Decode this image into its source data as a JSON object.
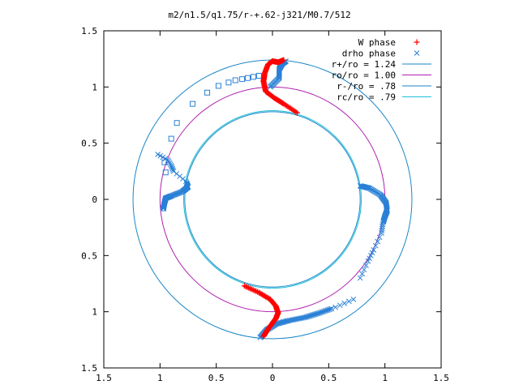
{
  "chart_data": {
    "type": "scatter",
    "title": "m2/n1.5/q1.75/r-+.62-j321/M0.7/512",
    "xlabel": "",
    "ylabel": "",
    "xlim": [
      -1.5,
      1.5
    ],
    "ylim": [
      -1.5,
      1.5
    ],
    "x_ticks": [
      "1.5",
      "1",
      "0.5",
      "0",
      "0.5",
      "1",
      "1.5"
    ],
    "y_ticks": [
      "1.5",
      "1",
      "0.5",
      "0",
      "0.5",
      "1",
      "1.5"
    ],
    "x_tick_values": [
      -1.5,
      -1,
      -0.5,
      0,
      0.5,
      1,
      1.5
    ],
    "y_tick_values": [
      1.5,
      1,
      0.5,
      0,
      -0.5,
      -1,
      -1.5
    ],
    "grid": false,
    "legend_position": "top-right",
    "series": [
      {
        "name": "W phase",
        "marker": "plus",
        "color": "#ff0000"
      },
      {
        "name": "drho phase",
        "marker": "x",
        "color": "#2a80d6"
      },
      {
        "name": "r+/ro = 1.24",
        "kind": "circle",
        "radius": 1.24,
        "color": "#1a86c8"
      },
      {
        "name": "ro/ro = 1.00",
        "kind": "circle",
        "radius": 1.0,
        "color": "#b020b0"
      },
      {
        "name": "r-/ro = .78",
        "kind": "circle",
        "radius": 0.78,
        "color": "#1a86c8"
      },
      {
        "name": "rc/ro = .79",
        "kind": "circle",
        "radius": 0.79,
        "color": "#20c0d8"
      }
    ],
    "w_phase_arms": [
      [
        [
          0.22,
          0.77
        ],
        [
          0.1,
          0.85
        ],
        [
          0.02,
          0.9
        ],
        [
          -0.06,
          0.96
        ],
        [
          -0.08,
          1.05
        ],
        [
          -0.07,
          1.12
        ],
        [
          -0.04,
          1.2
        ],
        [
          0.0,
          1.23
        ],
        [
          0.05,
          1.22
        ],
        [
          0.1,
          1.24
        ]
      ],
      [
        [
          -0.25,
          -0.77
        ],
        [
          -0.12,
          -0.83
        ],
        [
          -0.02,
          -0.89
        ],
        [
          0.03,
          -0.95
        ],
        [
          0.05,
          -1.01
        ],
        [
          0.03,
          -1.06
        ],
        [
          0.0,
          -1.1
        ],
        [
          -0.05,
          -1.17
        ],
        [
          -0.08,
          -1.22
        ]
      ]
    ],
    "drho_phase_arms": [
      [
        [
          -0.97,
          -0.08
        ],
        [
          -0.96,
          -0.03
        ],
        [
          -0.95,
          0.01
        ],
        [
          -0.9,
          0.03
        ],
        [
          -0.8,
          0.07
        ],
        [
          -0.75,
          0.11
        ],
        [
          -0.77,
          0.16
        ],
        [
          -0.88,
          0.25
        ],
        [
          -0.9,
          0.3
        ],
        [
          -0.93,
          0.35
        ],
        [
          -1.02,
          0.4
        ]
      ],
      [
        [
          0.78,
          0.12
        ],
        [
          0.86,
          0.1
        ],
        [
          0.96,
          0.04
        ],
        [
          1.01,
          -0.03
        ],
        [
          1.02,
          -0.1
        ],
        [
          1.0,
          -0.15
        ],
        [
          0.98,
          -0.22
        ],
        [
          0.97,
          -0.3
        ],
        [
          0.9,
          -0.45
        ],
        [
          0.85,
          -0.55
        ],
        [
          0.78,
          -0.7
        ]
      ],
      [
        [
          -0.02,
          1.0
        ],
        [
          0.06,
          1.08
        ],
        [
          0.06,
          1.16
        ],
        [
          0.09,
          1.21
        ],
        [
          0.12,
          1.23
        ]
      ],
      [
        [
          -0.11,
          -1.23
        ],
        [
          -0.05,
          -1.16
        ],
        [
          0.03,
          -1.11
        ],
        [
          0.14,
          -1.08
        ],
        [
          0.29,
          -1.05
        ],
        [
          0.42,
          -1.01
        ],
        [
          0.56,
          -0.96
        ],
        [
          0.72,
          -0.89
        ]
      ]
    ],
    "drho_square_points": [
      [
        -0.97,
        -0.08
      ],
      [
        -0.95,
        0.24
      ],
      [
        -0.96,
        0.33
      ],
      [
        -0.9,
        0.54
      ],
      [
        -0.85,
        0.68
      ],
      [
        -0.71,
        0.85
      ],
      [
        -0.58,
        0.95
      ],
      [
        -0.48,
        1.01
      ],
      [
        -0.39,
        1.04
      ],
      [
        -0.33,
        1.06
      ],
      [
        -0.27,
        1.07
      ],
      [
        -0.22,
        1.08
      ],
      [
        -0.17,
        1.09
      ],
      [
        -0.12,
        1.1
      ]
    ]
  }
}
